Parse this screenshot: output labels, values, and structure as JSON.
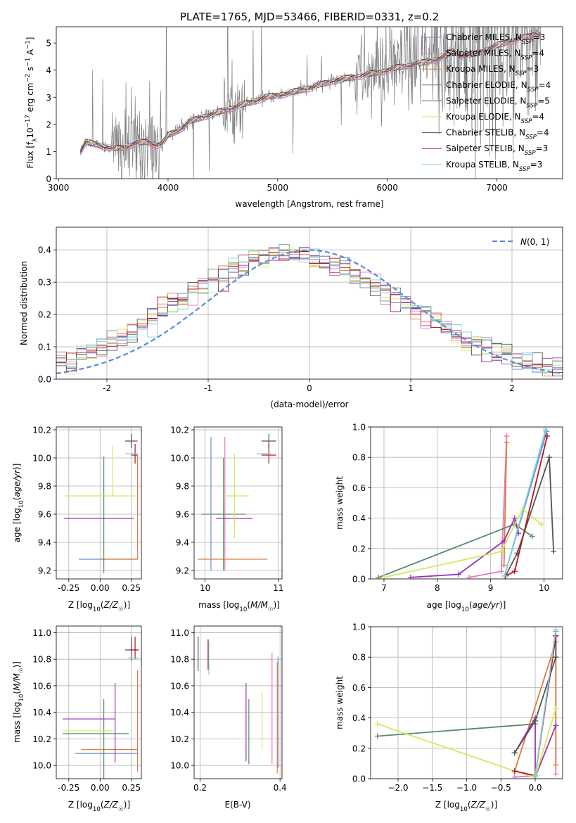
{
  "colors": {
    "Chabrier MILES": "#6b8bd8",
    "Salpeter MILES": "#e377c2",
    "Kroupa MILES": "#e07b39",
    "Chabrier ELODIE": "#5a8a6a",
    "Salpeter ELODIE": "#9c32b0",
    "Kroupa ELODIE": "#d4e85a",
    "Chabrier STELIB": "#555555",
    "Salpeter STELIB": "#b0171f",
    "Kroupa STELIB": "#7fd3d8",
    "spectrum": "#808080",
    "normal": "#5b8bd8"
  },
  "chart_data": [
    {
      "id": "spectrum",
      "type": "line",
      "title": "PLATE=1765, MJD=53466, FIBERID=0331, z=0.2",
      "xlabel": "wavelength [Angstrom, rest frame]",
      "ylabel": "Flux [f_λ 10^-17 erg cm^-2 s^-1 A^-1]",
      "xlim": [
        2980,
        7600
      ],
      "ylim": [
        0,
        5.6
      ],
      "xticks": [
        3000,
        4000,
        5000,
        6000,
        7000
      ],
      "yticks": [
        0,
        1,
        2,
        3,
        4,
        5
      ],
      "legend_position": "top-right",
      "legend": [
        {
          "label": "Chabrier MILES, N_SSP=3",
          "model": "Chabrier MILES"
        },
        {
          "label": "Salpeter MILES, N_SSP=4",
          "model": "Salpeter MILES"
        },
        {
          "label": "Kroupa MILES, N_SSP=3",
          "model": "Kroupa MILES"
        },
        {
          "label": "Chabrier ELODIE, N_SSP=4",
          "model": "Chabrier ELODIE"
        },
        {
          "label": "Salpeter ELODIE, N_SSP=5",
          "model": "Salpeter ELODIE"
        },
        {
          "label": "Kroupa ELODIE, N_SSP=4",
          "model": "Kroupa ELODIE"
        },
        {
          "label": "Chabrier STELIB, N_SSP=4",
          "model": "Chabrier STELIB"
        },
        {
          "label": "Salpeter STELIB, N_SSP=3",
          "model": "Salpeter STELIB"
        },
        {
          "label": "Kroupa STELIB, N_SSP=3",
          "model": "Kroupa STELIB"
        }
      ],
      "continuum_nodes": {
        "x": [
          3200,
          3250,
          3300,
          3400,
          3500,
          3600,
          3700,
          3800,
          3900,
          3950,
          4000,
          4100,
          4200,
          4300,
          4500,
          4700,
          4900,
          5100,
          5300,
          5500,
          5700,
          5900,
          6100,
          6300,
          6500,
          6600,
          6700,
          6800,
          6900,
          7000,
          7100,
          7200,
          7300,
          7350,
          7400
        ],
        "y": [
          1.0,
          1.35,
          1.3,
          1.2,
          1.1,
          1.15,
          1.3,
          1.35,
          1.25,
          1.3,
          1.6,
          1.8,
          2.1,
          2.25,
          2.5,
          2.75,
          3.0,
          3.15,
          3.35,
          3.6,
          3.75,
          3.9,
          4.1,
          4.25,
          4.45,
          4.7,
          4.5,
          4.6,
          4.75,
          4.9,
          5.05,
          5.15,
          5.25,
          5.4,
          5.3
        ]
      }
    },
    {
      "id": "residuals",
      "type": "histogram",
      "xlabel": "(data-model)/error",
      "ylabel": "Normed distribution",
      "xlim": [
        -2.5,
        2.5
      ],
      "ylim": [
        0,
        0.47
      ],
      "xticks": [
        -2,
        -1,
        0,
        1,
        2
      ],
      "yticks": [
        0.0,
        0.1,
        0.2,
        0.3,
        0.4
      ],
      "grid": true,
      "legend_position": "top-right",
      "legend": [
        {
          "label": "N(0,1)",
          "model": "normal"
        }
      ],
      "bin_edges_range": [
        -2.5,
        2.5
      ],
      "n_bins": 50
    },
    {
      "id": "age-vs-Z",
      "type": "errorbar",
      "xlabel": "Z [log10(Z/Z☉)]",
      "ylabel": "age [log10(age/yr)]",
      "xlim": [
        -0.35,
        0.33
      ],
      "ylim": [
        9.14,
        10.22
      ],
      "xticks": [
        -0.25,
        0.0,
        0.25
      ],
      "yticks": [
        9.2,
        9.4,
        9.6,
        9.8,
        10.0,
        10.2
      ],
      "grid": true,
      "points": [
        {
          "model": "Chabrier MILES",
          "x": 0.0,
          "xerr": [
            0.17,
            0.3
          ],
          "y": 9.28,
          "yerr": [
            0.0,
            0.0
          ]
        },
        {
          "model": "Salpeter MILES",
          "x": 0.29,
          "xerr": [
            0.0,
            0.0
          ],
          "y": 10.02,
          "yerr": [
            0.0,
            0.0
          ]
        },
        {
          "model": "Kroupa MILES",
          "x": 0.3,
          "xerr": [
            0.3,
            0.0
          ],
          "y": 9.28,
          "yerr": [
            0.0,
            0.74
          ]
        },
        {
          "model": "Chabrier ELODIE",
          "x": 0.03,
          "xerr": [
            0.0,
            0.0
          ],
          "y": 9.6,
          "yerr": [
            0.42,
            0.41
          ]
        },
        {
          "model": "Salpeter ELODIE",
          "x": 0.12,
          "xerr": [
            0.41,
            0.15
          ],
          "y": 9.57,
          "yerr": [
            0.0,
            0.0
          ]
        },
        {
          "model": "Kroupa ELODIE",
          "x": 0.1,
          "xerr": [
            0.38,
            0.18
          ],
          "y": 9.73,
          "yerr": [
            0.0,
            0.36
          ]
        },
        {
          "model": "Chabrier STELIB",
          "x": 0.25,
          "xerr": [
            0.05,
            0.05
          ],
          "y": 10.12,
          "yerr": [
            0.05,
            0.05
          ]
        },
        {
          "model": "Salpeter STELIB",
          "x": 0.28,
          "xerr": [
            0.03,
            0.02
          ],
          "y": 10.02,
          "yerr": [
            0.06,
            0.08
          ]
        },
        {
          "model": "Kroupa STELIB",
          "x": 0.25,
          "xerr": [
            0.05,
            0.05
          ],
          "y": 10.03,
          "yerr": [
            0.0,
            0.0
          ]
        }
      ]
    },
    {
      "id": "age-vs-mass",
      "type": "errorbar",
      "xlabel": "mass [log10(M/M☉)]",
      "ylabel": "",
      "xlim": [
        9.85,
        11.05
      ],
      "ylim": [
        9.14,
        10.22
      ],
      "xticks": [
        10,
        11
      ],
      "yticks": [
        9.2,
        9.4,
        9.6,
        9.8,
        10.0,
        10.2
      ],
      "grid": true,
      "points": [
        {
          "model": "Chabrier MILES",
          "x": 10.08,
          "xerr": [
            0.0,
            0.0
          ],
          "y": 9.6,
          "yerr": [
            0.4,
            0.55
          ]
        },
        {
          "model": "Salpeter MILES",
          "x": 10.27,
          "xerr": [
            0.0,
            0.0
          ],
          "y": 9.6,
          "yerr": [
            0.4,
            0.55
          ]
        },
        {
          "model": "Kroupa MILES",
          "x": 10.25,
          "xerr": [
            0.35,
            0.6
          ],
          "y": 9.28,
          "yerr": [
            0.0,
            0.0
          ]
        },
        {
          "model": "Chabrier ELODIE",
          "x": 10.25,
          "xerr": [
            0.3,
            0.3
          ],
          "y": 9.6,
          "yerr": [
            0.4,
            0.4
          ]
        },
        {
          "model": "Salpeter ELODIE",
          "x": 10.35,
          "xerr": [
            0.2,
            0.3
          ],
          "y": 9.57,
          "yerr": [
            0.0,
            0.0
          ]
        },
        {
          "model": "Kroupa ELODIE",
          "x": 10.4,
          "xerr": [
            0.15,
            0.2
          ],
          "y": 9.73,
          "yerr": [
            0.3,
            0.3
          ]
        },
        {
          "model": "Chabrier STELIB",
          "x": 10.87,
          "xerr": [
            0.1,
            0.1
          ],
          "y": 10.12,
          "yerr": [
            0.05,
            0.05
          ]
        },
        {
          "model": "Salpeter STELIB",
          "x": 10.87,
          "xerr": [
            0.1,
            0.1
          ],
          "y": 10.02,
          "yerr": [
            0.06,
            0.08
          ]
        },
        {
          "model": "Kroupa STELIB",
          "x": 10.8,
          "xerr": [
            0.1,
            0.1
          ],
          "y": 10.03,
          "yerr": [
            0.0,
            0.0
          ]
        }
      ]
    },
    {
      "id": "weight-vs-age",
      "type": "line",
      "xlabel": "age [log10(age/yr)]",
      "ylabel": "mass weight",
      "xlim": [
        6.75,
        10.35
      ],
      "ylim": [
        0,
        1.0
      ],
      "xticks": [
        7,
        8,
        9,
        10
      ],
      "yticks": [
        0.0,
        0.2,
        0.4,
        0.6,
        0.8,
        1.0
      ],
      "grid": true,
      "series": [
        {
          "model": "Chabrier MILES",
          "x": [
            9.26,
            10.05
          ],
          "y": [
            0.02,
            0.97
          ]
        },
        {
          "model": "Salpeter MILES",
          "x": [
            8.6,
            9.2,
            9.3
          ],
          "y": [
            0.01,
            0.05,
            0.94
          ]
        },
        {
          "model": "Kroupa MILES",
          "x": [
            9.25,
            9.3
          ],
          "y": [
            0.09,
            0.9
          ]
        },
        {
          "model": "Chabrier ELODIE",
          "x": [
            6.9,
            9.45,
            9.78
          ],
          "y": [
            0.01,
            0.36,
            0.28
          ]
        },
        {
          "model": "Salpeter ELODIE",
          "x": [
            7.5,
            8.4,
            9.25,
            9.45,
            9.52
          ],
          "y": [
            0.01,
            0.03,
            0.25,
            0.4,
            0.3
          ]
        },
        {
          "model": "Kroupa ELODIE",
          "x": [
            7.0,
            9.2,
            9.6,
            9.95
          ],
          "y": [
            0.01,
            0.18,
            0.46,
            0.36
          ]
        },
        {
          "model": "Chabrier STELIB",
          "x": [
            9.28,
            9.5,
            10.1,
            10.18
          ],
          "y": [
            0.02,
            0.17,
            0.8,
            0.18
          ]
        },
        {
          "model": "Salpeter STELIB",
          "x": [
            9.28,
            9.45,
            10.06
          ],
          "y": [
            0.02,
            0.05,
            0.94
          ]
        },
        {
          "model": "Kroupa STELIB",
          "x": [
            9.26,
            10.03
          ],
          "y": [
            0.02,
            0.98
          ]
        }
      ]
    },
    {
      "id": "mass-vs-Z",
      "type": "errorbar",
      "xlabel": "Z [log10(Z/Z☉)]",
      "ylabel": "mass [log10(M/M☉)]",
      "xlim": [
        -0.35,
        0.33
      ],
      "ylim": [
        9.9,
        11.05
      ],
      "xticks": [
        -0.25,
        0.0,
        0.25
      ],
      "yticks": [
        10.0,
        10.2,
        10.4,
        10.6,
        10.8,
        11.0
      ],
      "grid": true,
      "points": [
        {
          "model": "Chabrier MILES",
          "x": 0.0,
          "xerr": [
            0.2,
            0.3
          ],
          "y": 10.09,
          "yerr": [
            0.0,
            0.0
          ]
        },
        {
          "model": "Salpeter MILES",
          "x": 0.3,
          "xerr": [
            0.0,
            0.0
          ],
          "y": 10.1,
          "yerr": [
            0.0,
            0.0
          ]
        },
        {
          "model": "Kroupa MILES",
          "x": 0.3,
          "xerr": [
            0.45,
            0.0
          ],
          "y": 10.12,
          "yerr": [
            0.17,
            0.6
          ]
        },
        {
          "model": "Chabrier ELODIE",
          "x": 0.03,
          "xerr": [
            0.33,
            0.2
          ],
          "y": 10.24,
          "yerr": [
            0.34,
            0.26
          ]
        },
        {
          "model": "Salpeter ELODIE",
          "x": 0.12,
          "xerr": [
            0.42,
            0.0
          ],
          "y": 10.35,
          "yerr": [
            0.33,
            0.27
          ]
        },
        {
          "model": "Kroupa ELODIE",
          "x": 0.1,
          "xerr": [
            0.4,
            0.0
          ],
          "y": 10.26,
          "yerr": [
            0.0,
            0.0
          ]
        },
        {
          "model": "Chabrier STELIB",
          "x": 0.25,
          "xerr": [
            0.05,
            0.05
          ],
          "y": 10.87,
          "yerr": [
            0.08,
            0.1
          ]
        },
        {
          "model": "Salpeter STELIB",
          "x": 0.28,
          "xerr": [
            0.05,
            0.03
          ],
          "y": 10.87,
          "yerr": [
            0.07,
            0.1
          ]
        },
        {
          "model": "Kroupa STELIB",
          "x": 0.26,
          "xerr": [
            0.04,
            0.05
          ],
          "y": 10.81,
          "yerr": [
            0.0,
            0.0
          ]
        }
      ]
    },
    {
      "id": "mass-vs-EBV",
      "type": "errorbar",
      "xlabel": "E(B-V)",
      "ylabel": "",
      "xlim": [
        0.185,
        0.405
      ],
      "ylim": [
        9.9,
        11.05
      ],
      "xticks": [
        0.2,
        0.4
      ],
      "yticks": [
        10.0,
        10.2,
        10.4,
        10.6,
        10.8,
        11.0
      ],
      "grid": true,
      "points": [
        {
          "model": "Chabrier MILES",
          "x": 0.395,
          "xerr": [
            0.0,
            0.0
          ],
          "y": 10.4,
          "yerr": [
            0.42,
            0.42
          ]
        },
        {
          "model": "Salpeter MILES",
          "x": 0.38,
          "xerr": [
            0.0,
            0.0
          ],
          "y": 10.41,
          "yerr": [
            0.4,
            0.44
          ]
        },
        {
          "model": "Kroupa MILES",
          "x": 0.393,
          "xerr": [
            0.0,
            0.0
          ],
          "y": 10.38,
          "yerr": [
            0.44,
            0.4
          ]
        },
        {
          "model": "Chabrier ELODIE",
          "x": 0.322,
          "xerr": [
            0.0,
            0.0
          ],
          "y": 10.2,
          "yerr": [
            0.19,
            0.3
          ]
        },
        {
          "model": "Salpeter ELODIE",
          "x": 0.315,
          "xerr": [
            0.0,
            0.0
          ],
          "y": 10.32,
          "yerr": [
            0.29,
            0.3
          ]
        },
        {
          "model": "Kroupa ELODIE",
          "x": 0.355,
          "xerr": [
            0.0,
            0.0
          ],
          "y": 10.33,
          "yerr": [
            0.22,
            0.22
          ]
        },
        {
          "model": "Chabrier STELIB",
          "x": 0.195,
          "xerr": [
            0.0,
            0.0
          ],
          "y": 10.84,
          "yerr": [
            0.13,
            0.13
          ]
        },
        {
          "model": "Salpeter STELIB",
          "x": 0.22,
          "xerr": [
            0.0,
            0.0
          ],
          "y": 10.83,
          "yerr": [
            0.11,
            0.12
          ]
        },
        {
          "model": "Kroupa STELIB",
          "x": 0.222,
          "xerr": [
            0.0,
            0.0
          ],
          "y": 10.8,
          "yerr": [
            0.12,
            0.14
          ]
        }
      ]
    },
    {
      "id": "weight-vs-Z",
      "type": "line",
      "xlabel": "Z [log10(Z/Z☉)]",
      "ylabel": "mass weight",
      "xlim": [
        -2.4,
        0.4
      ],
      "ylim": [
        0,
        1.0
      ],
      "xticks": [
        -2.0,
        -1.5,
        -1.0,
        -0.5,
        0.0,
        0.5
      ],
      "yticks": [
        0.0,
        0.2,
        0.4,
        0.6,
        0.8,
        1.0
      ],
      "grid": true,
      "series": [
        {
          "model": "Chabrier MILES",
          "x": [
            0.0,
            0.3
          ],
          "y": [
            0.02,
            0.97
          ]
        },
        {
          "model": "Salpeter MILES",
          "x": [
            -0.3,
            0.0,
            0.3,
            0.3
          ],
          "y": [
            0.01,
            0.02,
            0.94,
            0.03
          ]
        },
        {
          "model": "Kroupa MILES",
          "x": [
            -0.3,
            0.3,
            0.3
          ],
          "y": [
            0.05,
            0.9,
            0.09
          ]
        },
        {
          "model": "Chabrier ELODIE",
          "x": [
            -2.3,
            0.0
          ],
          "y": [
            0.28,
            0.36
          ]
        },
        {
          "model": "Salpeter ELODIE",
          "x": [
            -0.3,
            0.0,
            0.0,
            0.3
          ],
          "y": [
            0.17,
            0.4,
            0.01,
            0.35
          ]
        },
        {
          "model": "Kroupa ELODIE",
          "x": [
            -2.3,
            -0.3,
            0.0,
            0.3
          ],
          "y": [
            0.36,
            0.05,
            0.01,
            0.46
          ]
        },
        {
          "model": "Chabrier STELIB",
          "x": [
            -0.3,
            0.0,
            0.3,
            0.3
          ],
          "y": [
            0.17,
            0.38,
            0.8,
            0.94
          ]
        },
        {
          "model": "Salpeter STELIB",
          "x": [
            -0.3,
            0.0,
            0.3
          ],
          "y": [
            0.05,
            0.02,
            0.94
          ]
        },
        {
          "model": "Kroupa STELIB",
          "x": [
            0.0,
            0.3
          ],
          "y": [
            0.02,
            0.98
          ]
        }
      ]
    }
  ]
}
